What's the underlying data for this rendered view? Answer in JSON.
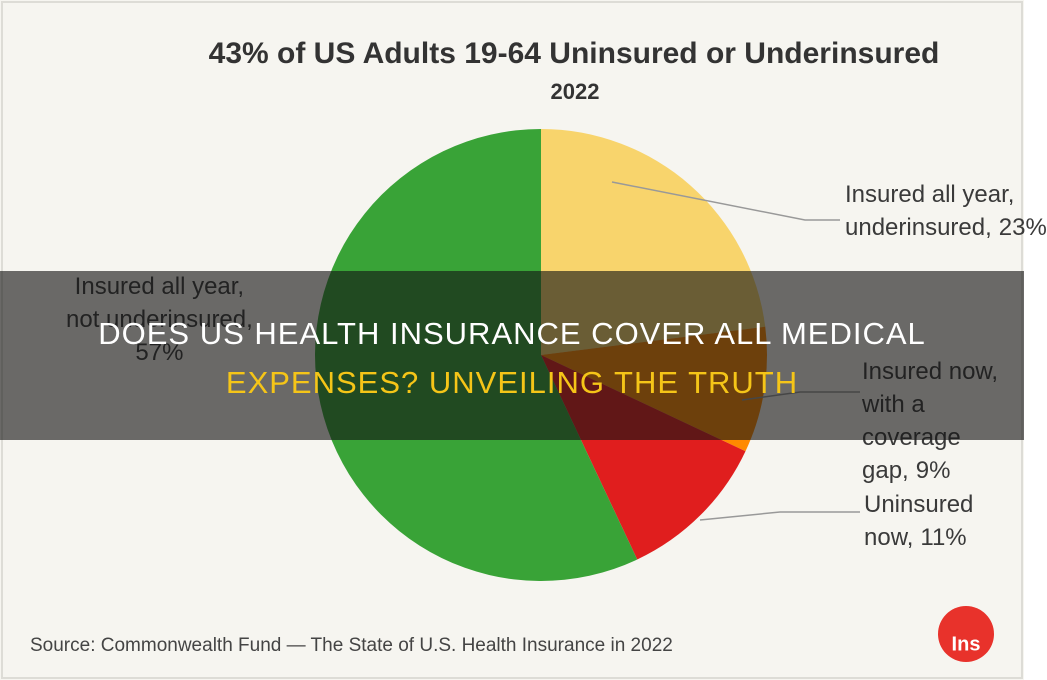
{
  "chart_data": {
    "type": "pie",
    "title": "43% of US Adults 19-64 Uninsured or Underinsured",
    "subtitle": "2022",
    "categories": [
      "Insured all year,\nunderinsured,",
      "Insured now, with a\ncoverage gap,",
      "Uninsured now,",
      "Insured all year,\nnot underinsured,"
    ],
    "values": [
      23,
      9,
      11,
      57
    ],
    "value_labels": [
      "23%",
      "9%",
      "11%",
      "57%"
    ],
    "colors": [
      "#f8d46c",
      "#ff8a00",
      "#e01e1e",
      "#39a337"
    ],
    "source": "Source: Commonwealth Fund — The State of U.S. Health Insurance in 2022"
  },
  "headline_lines": [
    "DOES US HEALTH INSURANCE COVER ALL MEDICAL",
    "EXPENSES? UNVEILING THE TRUTH"
  ],
  "logo": "Ins"
}
